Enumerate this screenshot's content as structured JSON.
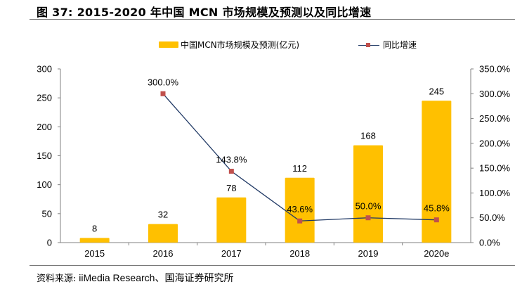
{
  "header": {
    "title": "图 37:  2015-2020 年中国 MCN 市场规模及预测以及同比增速"
  },
  "footer": {
    "source_prefix": "资料来源:",
    "source_text": " iiMedia Research、国海证券研究所"
  },
  "colors": {
    "bar": "#FFC000",
    "line": "#1F3864",
    "marker": "#C0504D",
    "axis": "#808080"
  },
  "chart_data": {
    "type": "bar+line",
    "title": "2015-2020 年中国 MCN 市场规模及预测以及同比增速",
    "categories": [
      "2015",
      "2016",
      "2017",
      "2018",
      "2019",
      "2020e"
    ],
    "series": [
      {
        "name": "中国MCN市场规模及预测(亿元)",
        "type": "bar",
        "axis": "left",
        "values": [
          8,
          32,
          78,
          112,
          168,
          245
        ],
        "labels": [
          "8",
          "32",
          "78",
          "112",
          "168",
          "245"
        ]
      },
      {
        "name": "同比增速",
        "type": "line",
        "axis": "right",
        "values": [
          null,
          300.0,
          143.8,
          43.6,
          50.0,
          45.8
        ],
        "labels": [
          "",
          "300.0%",
          "143.8%",
          "43.6%",
          "50.0%",
          "45.8%"
        ]
      }
    ],
    "y_left": {
      "min": 0,
      "max": 300,
      "step": 50,
      "ticks": [
        "0",
        "50",
        "100",
        "150",
        "200",
        "250",
        "300"
      ]
    },
    "y_right": {
      "min": 0,
      "max": 350,
      "step": 50,
      "ticks": [
        "0.0%",
        "50.0%",
        "100.0%",
        "150.0%",
        "200.0%",
        "250.0%",
        "300.0%",
        "350.0%"
      ]
    },
    "xlabel": "",
    "ylabel": "",
    "grid": false,
    "legend_position": "top-center"
  },
  "legend": {
    "bar_label": "中国MCN市场规模及预测(亿元)",
    "line_label": "同比增速"
  }
}
